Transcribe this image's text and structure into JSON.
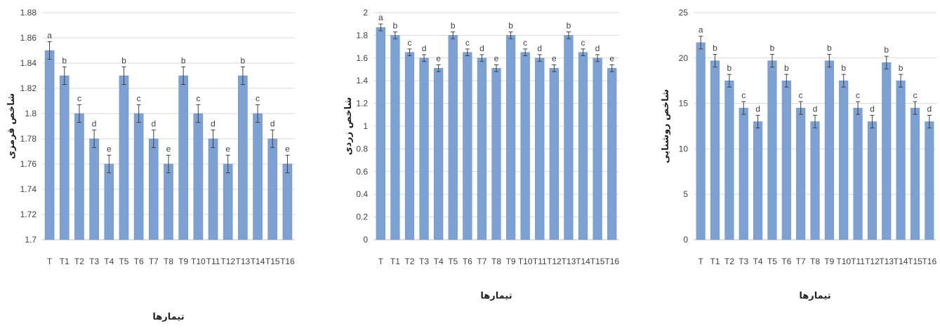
{
  "colors": {
    "bar": "#7ea1d4",
    "bar_stroke": "#6b8fc4",
    "grid": "#d9d9d9",
    "axis": "#bfbfbf",
    "error": "#404040"
  },
  "chart_data": [
    {
      "type": "bar",
      "title": "",
      "xlabel": "تیمارها",
      "ylabel": "شاخص قرمزی",
      "categories": [
        "T",
        "T1",
        "T2",
        "T3",
        "T4",
        "T5",
        "T6",
        "T7",
        "T8",
        "T9",
        "T10",
        "T11",
        "T12",
        "T13",
        "T14",
        "T15",
        "T16"
      ],
      "values": [
        1.85,
        1.83,
        1.8,
        1.78,
        1.76,
        1.83,
        1.8,
        1.78,
        1.76,
        1.83,
        1.8,
        1.78,
        1.76,
        1.83,
        1.8,
        1.78,
        1.76
      ],
      "errors": [
        0.007,
        0.007,
        0.007,
        0.007,
        0.007,
        0.007,
        0.007,
        0.007,
        0.007,
        0.007,
        0.007,
        0.007,
        0.007,
        0.007,
        0.007,
        0.007,
        0.007
      ],
      "letters": [
        "a",
        "b",
        "c",
        "d",
        "e",
        "b",
        "c",
        "d",
        "e",
        "b",
        "c",
        "d",
        "e",
        "b",
        "c",
        "d",
        "e"
      ],
      "ylim": [
        1.7,
        1.88
      ],
      "yticks": [
        "1.7",
        "1.72",
        "1.74",
        "1.76",
        "1.78",
        "1.8",
        "1.82",
        "1.84",
        "1.86",
        "1.88"
      ],
      "grid": true
    },
    {
      "type": "bar",
      "title": "",
      "xlabel": "تیمارها",
      "ylabel": "شاخص زردی",
      "categories": [
        "T",
        "T1",
        "T2",
        "T3",
        "T4",
        "T5",
        "T6",
        "T7",
        "T8",
        "T9",
        "T10",
        "T11",
        "T12",
        "T13",
        "T14",
        "T15",
        "T16"
      ],
      "values": [
        1.87,
        1.8,
        1.65,
        1.6,
        1.51,
        1.8,
        1.65,
        1.6,
        1.51,
        1.8,
        1.65,
        1.6,
        1.51,
        1.8,
        1.65,
        1.6,
        1.51
      ],
      "errors": [
        0.03,
        0.03,
        0.03,
        0.03,
        0.03,
        0.03,
        0.03,
        0.03,
        0.03,
        0.03,
        0.03,
        0.03,
        0.03,
        0.03,
        0.03,
        0.03,
        0.03
      ],
      "letters": [
        "a",
        "b",
        "c",
        "d",
        "e",
        "b",
        "c",
        "d",
        "e",
        "b",
        "c",
        "d",
        "e",
        "b",
        "c",
        "d",
        "e"
      ],
      "ylim": [
        0,
        2
      ],
      "yticks": [
        "0",
        "0.2",
        "0.4",
        "0.6",
        "0.8",
        "1",
        "1.2",
        "1.4",
        "1.6",
        "1.8",
        "2"
      ],
      "grid": true
    },
    {
      "type": "bar",
      "title": "",
      "xlabel": "تیمارها",
      "ylabel": "شاخص روشنایی",
      "categories": [
        "T",
        "T1",
        "T2",
        "T3",
        "T4",
        "T5",
        "T6",
        "T7",
        "T8",
        "T9",
        "T10",
        "T11",
        "T12",
        "T13",
        "T14",
        "T15",
        "T16"
      ],
      "values": [
        21.7,
        19.7,
        17.5,
        14.5,
        13.0,
        19.7,
        17.5,
        14.5,
        13.0,
        19.7,
        17.5,
        14.5,
        13.0,
        19.5,
        17.5,
        14.5,
        13.0
      ],
      "errors": [
        0.7,
        0.7,
        0.7,
        0.7,
        0.7,
        0.7,
        0.7,
        0.7,
        0.7,
        0.7,
        0.7,
        0.7,
        0.7,
        0.7,
        0.7,
        0.7,
        0.7
      ],
      "letters": [
        "a",
        "b",
        "b",
        "c",
        "d",
        "b",
        "b",
        "c",
        "d",
        "b",
        "b",
        "c",
        "d",
        "b",
        "b",
        "c",
        "d"
      ],
      "ylim": [
        0,
        25
      ],
      "yticks": [
        "0",
        "5",
        "10",
        "15",
        "20",
        "25"
      ],
      "grid": true
    }
  ]
}
